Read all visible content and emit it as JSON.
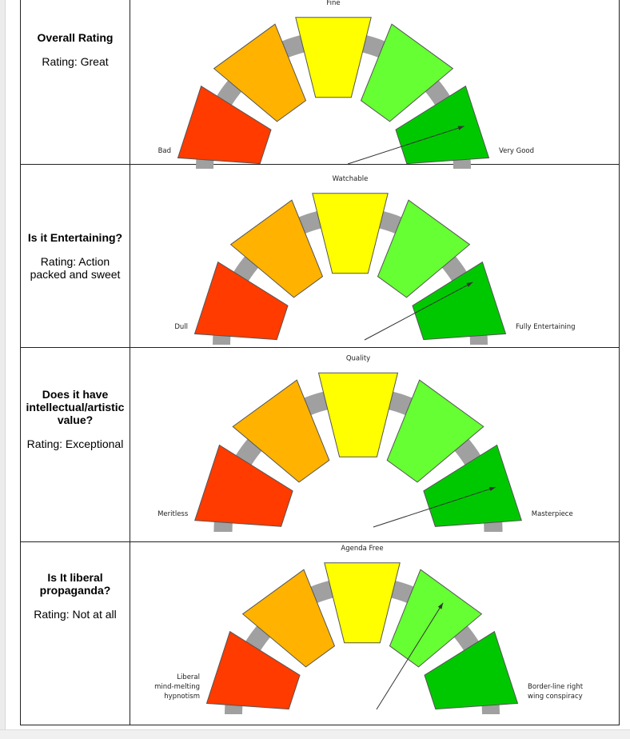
{
  "colors": {
    "bad": "#ff3b00",
    "poor": "#ffb300",
    "fine": "#ffff00",
    "good": "#66ff33",
    "very_good": "#00c800",
    "track": "#a0a0a0",
    "needle": "#333333"
  },
  "gauges": [
    {
      "question": "Overall Rating",
      "rating": "Rating: Great",
      "left_label": [
        "Bad"
      ],
      "top_label": "Fine",
      "right_label": [
        "Very Good"
      ],
      "needle_level": 0.9
    },
    {
      "question": "Is it Entertaining?",
      "rating": "Rating: Action packed and sweet",
      "left_label": [
        "Dull"
      ],
      "top_label": "Watchable",
      "right_label": [
        "Fully Entertaining"
      ],
      "needle_level": 0.85
    },
    {
      "question": "Does it have intellectual/artistic value?",
      "rating": "Rating: Exceptional",
      "left_label": [
        "Meritless"
      ],
      "top_label": "Quality",
      "right_label": [
        "Masterpiece"
      ],
      "needle_level": 0.9
    },
    {
      "question": "Is It liberal propaganda?",
      "rating": "Rating: Not at all",
      "left_label": [
        "Liberal",
        "mind-melting",
        "hypnotism"
      ],
      "top_label": "Agenda Free",
      "right_label": [
        "Border-line right",
        "wing conspiracy"
      ],
      "needle_level": 0.7
    }
  ]
}
